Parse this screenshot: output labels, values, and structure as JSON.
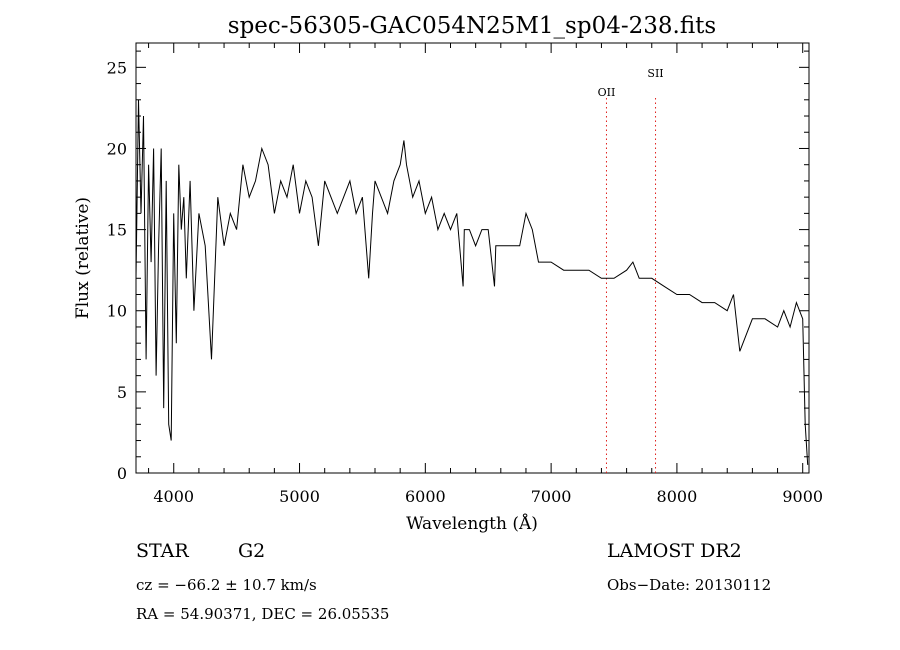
{
  "chart_data": {
    "type": "line",
    "title": "spec-56305-GAC054N25M1_sp04-238.fits",
    "xlabel": "Wavelength (Å)",
    "ylabel": "Flux (relative)",
    "xlim": [
      3700,
      9050
    ],
    "ylim": [
      0,
      26.5
    ],
    "x_ticks": [
      4000,
      5000,
      6000,
      7000,
      8000,
      9000
    ],
    "y_ticks": [
      0,
      5,
      10,
      15,
      20,
      25
    ],
    "x_tick_labels": [
      "4000",
      "5000",
      "6000",
      "7000",
      "8000",
      "9000"
    ],
    "y_tick_labels": [
      "0",
      "5",
      "10",
      "15",
      "20",
      "25"
    ],
    "grid": false,
    "lines": [
      {
        "label": "OII",
        "x": 7440,
        "color": "#e0201c"
      },
      {
        "label": "SII",
        "x": 7830,
        "color": "#e0201c"
      }
    ],
    "spectrum": {
      "x": [
        3700,
        3720,
        3740,
        3760,
        3780,
        3800,
        3820,
        3840,
        3860,
        3880,
        3900,
        3920,
        3940,
        3960,
        3980,
        4000,
        4020,
        4040,
        4060,
        4080,
        4100,
        4130,
        4160,
        4200,
        4250,
        4300,
        4350,
        4400,
        4450,
        4500,
        4550,
        4600,
        4650,
        4700,
        4750,
        4800,
        4850,
        4900,
        4950,
        5000,
        5050,
        5100,
        5150,
        5200,
        5250,
        5300,
        5350,
        5400,
        5450,
        5500,
        5550,
        5580,
        5600,
        5650,
        5700,
        5750,
        5800,
        5830,
        5850,
        5900,
        5950,
        6000,
        6050,
        6100,
        6150,
        6200,
        6250,
        6300,
        6310,
        6350,
        6400,
        6450,
        6500,
        6550,
        6560,
        6600,
        6650,
        6700,
        6750,
        6800,
        6850,
        6900,
        6950,
        7000,
        7100,
        7200,
        7300,
        7400,
        7500,
        7600,
        7650,
        7700,
        7800,
        7900,
        8000,
        8100,
        8200,
        8300,
        8400,
        8450,
        8500,
        8600,
        8700,
        8800,
        8850,
        8900,
        8950,
        9000,
        9020,
        9040
      ],
      "y": [
        12,
        23,
        16,
        22,
        7,
        19,
        13,
        20,
        6,
        14,
        20,
        4,
        18,
        3,
        2,
        16,
        8,
        19,
        15,
        17,
        12,
        18,
        10,
        16,
        14,
        7,
        17,
        14,
        16,
        15,
        19,
        17,
        18,
        20,
        19,
        16,
        18,
        17,
        19,
        16,
        18,
        17,
        14,
        18,
        17,
        16,
        17,
        18,
        16,
        17,
        12,
        16,
        18,
        17,
        16,
        18,
        19,
        20.5,
        19,
        17,
        18,
        16,
        17,
        15,
        16,
        15,
        16,
        11.5,
        15,
        15,
        14,
        15,
        15,
        11.5,
        14,
        14,
        14,
        14,
        14,
        16,
        15,
        13,
        13,
        13,
        12.5,
        12.5,
        12.5,
        12,
        12,
        12.5,
        13,
        12,
        12,
        11.5,
        11,
        11,
        10.5,
        10.5,
        10,
        11,
        7.5,
        9.5,
        9.5,
        9,
        10,
        9,
        10.5,
        9.5,
        3,
        0.5
      ]
    }
  },
  "info": {
    "object_class": "STAR",
    "subclass": "G2",
    "survey": "LAMOST DR2",
    "cz": "cz = −66.2 ± 10.7 km/s",
    "obs_date": "Obs−Date: 20130112",
    "coords": "RA =  54.90371, DEC =  26.05535"
  }
}
